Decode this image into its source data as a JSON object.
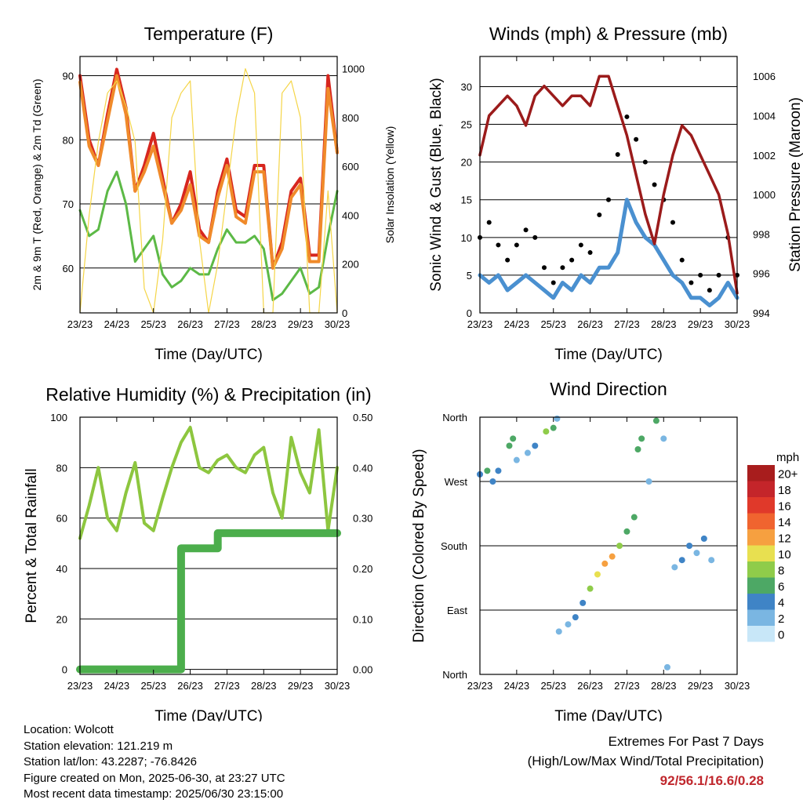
{
  "x_tick_labels": [
    "23/23",
    "24/23",
    "25/23",
    "26/23",
    "27/23",
    "28/23",
    "29/23",
    "30/23"
  ],
  "xlabel": "Time (Day/UTC)",
  "chart_data": [
    {
      "type": "line",
      "title": "Temperature (F)",
      "ylabel_left": "2m & 9m T (Red, Orange) & 2m Td (Green)",
      "ylabel_right": "Solar Insolation (Yellow)",
      "ylim": [
        53,
        93
      ],
      "y2lim": [
        0,
        1050
      ],
      "yticks": [
        60,
        70,
        80,
        90
      ],
      "y2ticks": [
        0,
        200,
        400,
        600,
        800,
        1000
      ],
      "x": [
        0,
        0.25,
        0.5,
        0.75,
        1.0,
        1.25,
        1.5,
        1.75,
        2.0,
        2.25,
        2.5,
        2.75,
        3.0,
        3.25,
        3.5,
        3.75,
        4.0,
        4.25,
        4.5,
        4.75,
        5.0,
        5.25,
        5.5,
        5.75,
        6.0,
        6.25,
        6.5,
        6.75,
        7.0
      ],
      "series": [
        {
          "color": "#d7261e",
          "values": [
            90,
            80,
            76,
            84,
            91,
            85,
            72,
            76,
            81,
            74,
            67,
            70,
            75,
            66,
            64,
            72,
            77,
            69,
            68,
            76,
            76,
            60,
            64,
            72,
            74,
            62,
            62,
            90,
            78
          ]
        },
        {
          "color": "#f08a2a",
          "values": [
            89,
            79,
            76,
            83,
            90,
            84,
            72,
            75,
            79,
            73,
            67,
            69,
            73,
            65,
            64,
            71,
            76,
            68,
            67,
            75,
            75,
            60,
            63,
            71,
            73,
            61,
            61,
            88,
            78
          ]
        },
        {
          "color": "#5cb946",
          "values": [
            69,
            65,
            66,
            72,
            75,
            70,
            61,
            63,
            65,
            59,
            57,
            58,
            60,
            59,
            59,
            63,
            66,
            64,
            64,
            65,
            63,
            55,
            56,
            58,
            60,
            56,
            57,
            65,
            72
          ]
        },
        {
          "color": "#f5d547",
          "axis": "right",
          "values": [
            0,
            400,
            700,
            900,
            950,
            850,
            700,
            100,
            0,
            300,
            800,
            900,
            950,
            300,
            0,
            200,
            500,
            800,
            1000,
            900,
            0,
            0,
            900,
            950,
            800,
            0,
            0,
            500,
            0
          ]
        }
      ]
    },
    {
      "type": "line",
      "title": "Winds (mph) & Pressure (mb)",
      "ylabel_left": "Sonic Wind & Gust (Blue, Black)",
      "ylabel_right": "Station Pressure (Maroon)",
      "ylim": [
        0,
        34
      ],
      "y2lim": [
        994,
        1007
      ],
      "yticks": [
        0,
        5,
        10,
        15,
        20,
        25,
        30
      ],
      "y2ticks": [
        994,
        996,
        998,
        1000,
        1002,
        1004,
        1006
      ],
      "x": [
        0,
        0.25,
        0.5,
        0.75,
        1.0,
        1.25,
        1.5,
        1.75,
        2.0,
        2.25,
        2.5,
        2.75,
        3.0,
        3.25,
        3.5,
        3.75,
        4.0,
        4.25,
        4.5,
        4.75,
        5.0,
        5.25,
        5.5,
        5.75,
        6.0,
        6.25,
        6.5,
        6.75,
        7.0
      ],
      "series": [
        {
          "color": "#4a90d0",
          "values": [
            5,
            4,
            5,
            3,
            4,
            5,
            4,
            3,
            2,
            4,
            3,
            5,
            4,
            6,
            6,
            8,
            15,
            12,
            10,
            9,
            7,
            5,
            4,
            2,
            2,
            1,
            2,
            4,
            2
          ]
        },
        {
          "color": "#000000",
          "values": [
            10,
            12,
            9,
            7,
            9,
            11,
            10,
            6,
            4,
            6,
            7,
            9,
            8,
            13,
            15,
            21,
            26,
            23,
            20,
            17,
            15,
            12,
            7,
            4,
            5,
            3,
            5,
            10,
            5
          ]
        },
        {
          "color": "#9b1b1b",
          "axis": "right",
          "values": [
            1002,
            1004,
            1004.5,
            1005,
            1004.5,
            1003.5,
            1005,
            1005.5,
            1005,
            1004.5,
            1005,
            1005,
            1004.5,
            1006,
            1006,
            1004.5,
            1003,
            1001,
            999,
            997.5,
            1000,
            1002,
            1003.5,
            1003,
            1002,
            1001,
            1000,
            998,
            995
          ]
        }
      ]
    },
    {
      "type": "line",
      "title": "Relative Humidity (%) & Precipitation (in)",
      "ylabel_left": "Percent & Total Rainfall",
      "ylim": [
        -2,
        100
      ],
      "y2lim": [
        -0.01,
        0.5
      ],
      "yticks": [
        0,
        20,
        40,
        60,
        80,
        100
      ],
      "y2ticks": [
        "0.00",
        "0.10",
        "0.20",
        "0.30",
        "0.40",
        "0.50"
      ],
      "x": [
        0,
        0.25,
        0.5,
        0.75,
        1.0,
        1.25,
        1.5,
        1.75,
        2.0,
        2.25,
        2.5,
        2.75,
        3.0,
        3.25,
        3.5,
        3.75,
        4.0,
        4.25,
        4.5,
        4.75,
        5.0,
        5.25,
        5.5,
        5.75,
        6.0,
        6.25,
        6.5,
        6.75,
        7.0
      ],
      "series": [
        {
          "color": "#8dc63f",
          "values": [
            52,
            65,
            80,
            60,
            55,
            70,
            82,
            58,
            55,
            68,
            80,
            90,
            96,
            80,
            78,
            83,
            85,
            80,
            78,
            85,
            88,
            70,
            60,
            92,
            78,
            70,
            95,
            55,
            80
          ]
        },
        {
          "color": "#4cae4c",
          "axis": "right",
          "values": [
            0,
            0,
            0,
            0,
            0,
            0,
            0,
            0,
            0,
            0,
            0,
            0.24,
            0.24,
            0.24,
            0.24,
            0.27,
            0.27,
            0.27,
            0.27,
            0.27,
            0.27,
            0.27,
            0.27,
            0.27,
            0.27,
            0.27,
            0.27,
            0.27,
            0.27
          ]
        }
      ]
    },
    {
      "type": "scatter",
      "title": "Wind Direction",
      "ylabel": "Direction (Colored By Speed)",
      "yticks": [
        "North",
        "East",
        "South",
        "West",
        "North"
      ],
      "legend_title": "mph",
      "colorbar": [
        {
          "label": "20+",
          "color": "#a81d1d"
        },
        {
          "label": "18",
          "color": "#c4252a"
        },
        {
          "label": "16",
          "color": "#e0392a"
        },
        {
          "label": "14",
          "color": "#f0642f"
        },
        {
          "label": "12",
          "color": "#f6a040"
        },
        {
          "label": "10",
          "color": "#e8e050"
        },
        {
          "label": "8",
          "color": "#8fcc4a"
        },
        {
          "label": "6",
          "color": "#4da865"
        },
        {
          "label": "4",
          "color": "#3f84c6"
        },
        {
          "label": "2",
          "color": "#7ab6e2"
        },
        {
          "label": "0",
          "color": "#c8e7f8"
        }
      ],
      "points": [
        [
          0.0,
          280,
          5
        ],
        [
          0.2,
          285,
          6
        ],
        [
          0.35,
          270,
          4
        ],
        [
          0.5,
          285,
          5
        ],
        [
          0.8,
          320,
          7
        ],
        [
          0.9,
          330,
          6
        ],
        [
          1.0,
          300,
          3
        ],
        [
          1.3,
          310,
          3
        ],
        [
          1.5,
          320,
          5
        ],
        [
          1.8,
          340,
          8
        ],
        [
          2.0,
          345,
          6
        ],
        [
          2.1,
          358,
          3
        ],
        [
          2.15,
          60,
          2
        ],
        [
          2.4,
          70,
          3
        ],
        [
          2.6,
          80,
          4
        ],
        [
          2.8,
          100,
          5
        ],
        [
          3.0,
          120,
          8
        ],
        [
          3.2,
          140,
          10
        ],
        [
          3.4,
          155,
          13
        ],
        [
          3.6,
          165,
          12
        ],
        [
          3.8,
          180,
          9
        ],
        [
          4.0,
          200,
          7
        ],
        [
          4.2,
          220,
          6
        ],
        [
          4.3,
          315,
          6
        ],
        [
          4.4,
          330,
          7
        ],
        [
          4.6,
          270,
          3
        ],
        [
          4.8,
          355,
          6
        ],
        [
          5.0,
          330,
          3
        ],
        [
          5.1,
          10,
          2
        ],
        [
          5.3,
          150,
          3
        ],
        [
          5.5,
          160,
          4
        ],
        [
          5.7,
          180,
          5
        ],
        [
          5.9,
          170,
          3
        ],
        [
          6.1,
          190,
          4
        ],
        [
          6.3,
          160,
          2
        ]
      ]
    }
  ],
  "info": {
    "location": "Location: Wolcott",
    "elevation": "Station elevation: 121.219 m",
    "latlon": "Station lat/lon: 43.2287; -76.8426",
    "created": "Figure created on Mon, 2025-06-30, at 23:27 UTC",
    "recent": "Most recent data timestamp: 2025/06/30 23:15:00"
  },
  "extremes": {
    "title": "Extremes For Past 7 Days",
    "subtitle": "(High/Low/Max Wind/Total Precipitation)",
    "values": "92/56.1/16.6/0.28"
  }
}
